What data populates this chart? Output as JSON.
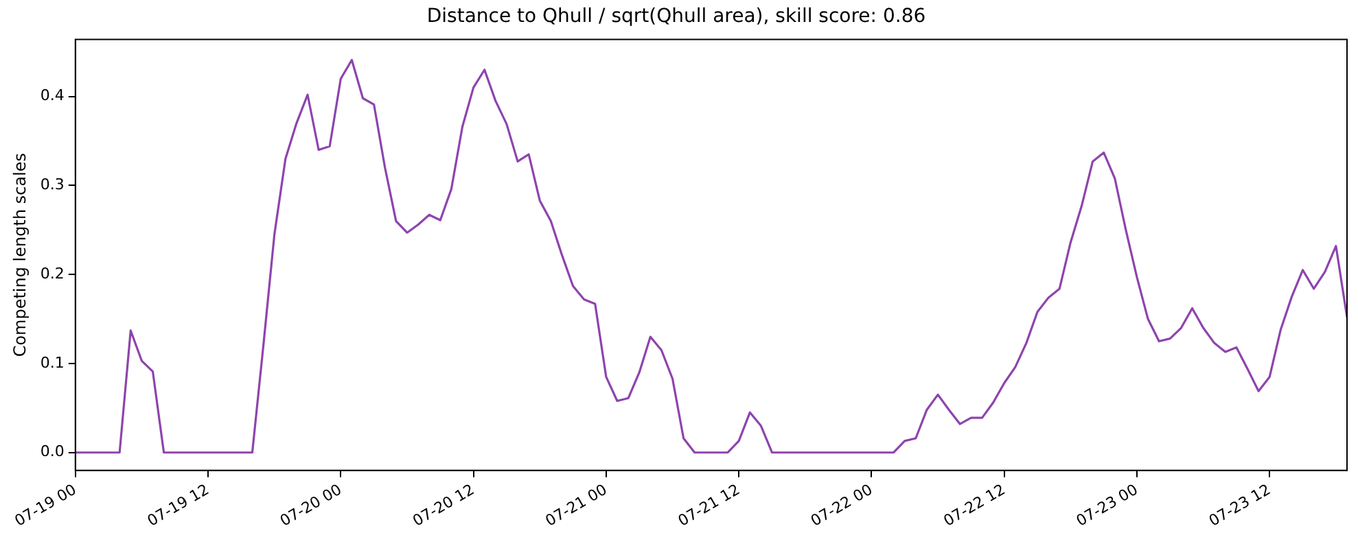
{
  "chart_data": {
    "type": "line",
    "title": "Distance to Qhull / sqrt(Qhull area), skill score: 0.86",
    "ylabel": "Competing length scales",
    "x": [
      "--07-19T00:00",
      "--07-19T01:00",
      "--07-19T02:00",
      "--07-19T03:00",
      "--07-19T04:00",
      "--07-19T05:00",
      "--07-19T06:00",
      "--07-19T07:00",
      "--07-19T08:00",
      "--07-19T09:00",
      "--07-19T10:00",
      "--07-19T11:00",
      "--07-19T12:00",
      "--07-19T13:00",
      "--07-19T14:00",
      "--07-19T15:00",
      "--07-19T16:00",
      "--07-19T17:00",
      "--07-19T18:00",
      "--07-19T19:00",
      "--07-19T20:00",
      "--07-19T21:00",
      "--07-19T22:00",
      "--07-19T23:00",
      "--07-20T00:00",
      "--07-20T01:00",
      "--07-20T02:00",
      "--07-20T03:00",
      "--07-20T04:00",
      "--07-20T05:00",
      "--07-20T06:00",
      "--07-20T07:00",
      "--07-20T08:00",
      "--07-20T09:00",
      "--07-20T10:00",
      "--07-20T11:00",
      "--07-20T12:00",
      "--07-20T13:00",
      "--07-20T14:00",
      "--07-20T15:00",
      "--07-20T16:00",
      "--07-20T17:00",
      "--07-20T18:00",
      "--07-20T19:00",
      "--07-20T20:00",
      "--07-20T21:00",
      "--07-20T22:00",
      "--07-20T23:00",
      "--07-21T00:00",
      "--07-21T01:00",
      "--07-21T02:00",
      "--07-21T03:00",
      "--07-21T04:00",
      "--07-21T05:00",
      "--07-21T06:00",
      "--07-21T07:00",
      "--07-21T08:00",
      "--07-21T09:00",
      "--07-21T10:00",
      "--07-21T11:00",
      "--07-21T12:00",
      "--07-21T13:00",
      "--07-21T14:00",
      "--07-21T15:00",
      "--07-21T16:00",
      "--07-21T17:00",
      "--07-21T18:00",
      "--07-21T19:00",
      "--07-21T20:00",
      "--07-21T21:00",
      "--07-21T22:00",
      "--07-21T23:00",
      "--07-22T00:00",
      "--07-22T01:00",
      "--07-22T02:00",
      "--07-22T03:00",
      "--07-22T04:00",
      "--07-22T05:00",
      "--07-22T06:00",
      "--07-22T07:00",
      "--07-22T08:00",
      "--07-22T09:00",
      "--07-22T10:00",
      "--07-22T11:00",
      "--07-22T12:00",
      "--07-22T13:00",
      "--07-22T14:00",
      "--07-22T15:00",
      "--07-22T16:00",
      "--07-22T17:00",
      "--07-22T18:00",
      "--07-22T19:00",
      "--07-22T20:00",
      "--07-22T21:00",
      "--07-22T22:00",
      "--07-22T23:00",
      "--07-23T00:00",
      "--07-23T01:00",
      "--07-23T02:00",
      "--07-23T03:00",
      "--07-23T04:00",
      "--07-23T05:00",
      "--07-23T06:00",
      "--07-23T07:00",
      "--07-23T08:00",
      "--07-23T09:00",
      "--07-23T10:00",
      "--07-23T11:00",
      "--07-23T12:00",
      "--07-23T13:00",
      "--07-23T14:00",
      "--07-23T15:00",
      "--07-23T16:00",
      "--07-23T17:00",
      "--07-23T18:00",
      "--07-23T19:00"
    ],
    "series": [
      {
        "color": "#8e44ad",
        "values": [
          0,
          0,
          0,
          0,
          0,
          0.137,
          0.103,
          0.091,
          0,
          0,
          0,
          0,
          0,
          0,
          0,
          0,
          0,
          0.12,
          0.245,
          0.33,
          0.37,
          0.402,
          0.34,
          0.344,
          0.42,
          0.441,
          0.398,
          0.391,
          0.32,
          0.26,
          0.247,
          0.256,
          0.267,
          0.261,
          0.296,
          0.366,
          0.41,
          0.43,
          0.395,
          0.369,
          0.327,
          0.335,
          0.283,
          0.26,
          0.222,
          0.187,
          0.172,
          0.167,
          0.085,
          0.058,
          0.061,
          0.09,
          0.13,
          0.115,
          0.083,
          0.016,
          0,
          0,
          0,
          0,
          0.013,
          0.045,
          0.03,
          0,
          0,
          0,
          0,
          0,
          0,
          0,
          0,
          0,
          0,
          0,
          0,
          0.013,
          0.016,
          0.048,
          0.065,
          0.048,
          0.032,
          0.039,
          0.039,
          0.056,
          0.078,
          0.096,
          0.123,
          0.158,
          0.174,
          0.184,
          0.236,
          0.277,
          0.327,
          0.337,
          0.308,
          0.25,
          0.197,
          0.15,
          0.125,
          0.128,
          0.14,
          0.162,
          0.14,
          0.123,
          0.113,
          0.118,
          0.094,
          0.069,
          0.085,
          0.138,
          0.175,
          0.205,
          0.184,
          0.203,
          0.232,
          0.152
        ]
      }
    ],
    "xlim": [
      "--07-19T00:00",
      "--07-23T19:00"
    ],
    "xticks": [
      {
        "value": "--07-19T00:00",
        "label": "07-19 00"
      },
      {
        "value": "--07-19T12:00",
        "label": "07-19 12"
      },
      {
        "value": "--07-20T00:00",
        "label": "07-20 00"
      },
      {
        "value": "--07-20T12:00",
        "label": "07-20 12"
      },
      {
        "value": "--07-21T00:00",
        "label": "07-21 00"
      },
      {
        "value": "--07-21T12:00",
        "label": "07-21 12"
      },
      {
        "value": "--07-22T00:00",
        "label": "07-22 00"
      },
      {
        "value": "--07-22T12:00",
        "label": "07-22 12"
      },
      {
        "value": "--07-23T00:00",
        "label": "07-23 00"
      },
      {
        "value": "--07-23T12:00",
        "label": "07-23 12"
      }
    ],
    "ylim": [
      -0.02,
      0.464
    ],
    "yticks": [
      {
        "value": 0,
        "label": "0.0"
      },
      {
        "value": 0.1,
        "label": "0.1"
      },
      {
        "value": 0.2,
        "label": "0.2"
      },
      {
        "value": 0.3,
        "label": "0.3"
      },
      {
        "value": 0.4,
        "label": "0.4"
      }
    ],
    "grid": false,
    "legend": false,
    "marker": "none",
    "line_style": "solid"
  }
}
